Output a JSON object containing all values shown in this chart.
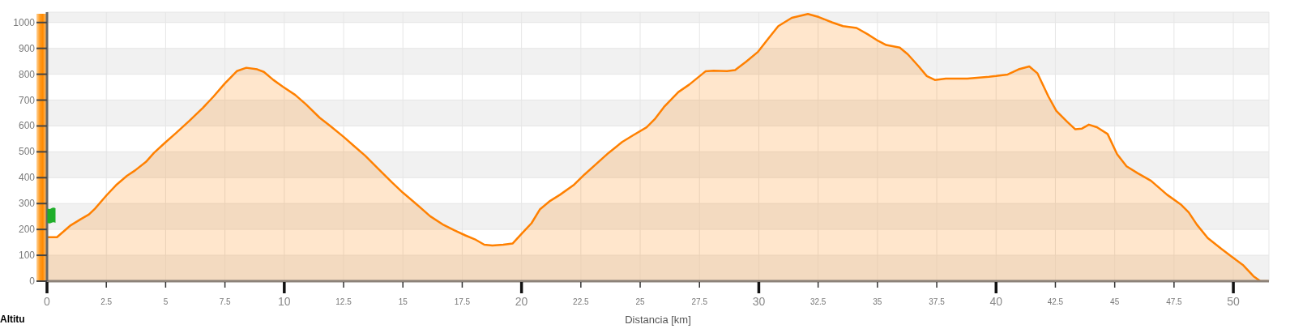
{
  "chart_data": {
    "type": "area",
    "xlabel": "Distancia [km]",
    "ylabel": "Altitu",
    "color": "#ff8000",
    "x": [
      0,
      0.42,
      0.97,
      1.43,
      1.77,
      2.02,
      2.51,
      2.91,
      3.37,
      3.71,
      4.17,
      4.51,
      4.97,
      5.43,
      6.0,
      6.57,
      7.03,
      7.49,
      8.0,
      8.4,
      8.86,
      9.14,
      9.54,
      9.94,
      10.46,
      10.91,
      11.49,
      11.94,
      12.5,
      13.01,
      13.41,
      13.98,
      14.55,
      15.0,
      15.58,
      16.15,
      16.72,
      17.18,
      17.63,
      18.03,
      18.43,
      18.77,
      19.23,
      19.63,
      20.03,
      20.42,
      20.77,
      21.17,
      21.62,
      22.19,
      22.65,
      23.1,
      23.67,
      24.24,
      24.7,
      25.27,
      25.61,
      26.0,
      26.61,
      27.07,
      27.75,
      28.09,
      28.66,
      29.0,
      29.46,
      29.97,
      30.37,
      30.82,
      31.39,
      32.07,
      32.53,
      33.1,
      33.55,
      34.12,
      34.58,
      35.03,
      35.37,
      35.94,
      36.28,
      36.74,
      37.08,
      37.42,
      37.88,
      38.79,
      39.7,
      40.0,
      40.49,
      40.95,
      41.4,
      41.74,
      42.2,
      42.54,
      43.0,
      43.34,
      43.62,
      43.91,
      44.25,
      44.7,
      45.1,
      45.5,
      45.96,
      46.53,
      47.21,
      47.78,
      48.12,
      48.46,
      48.92,
      49.49,
      49.94,
      50.4,
      50.85,
      51.14,
      51.48
    ],
    "values": [
      170,
      170,
      214,
      240,
      258,
      280,
      332,
      371,
      407,
      428,
      461,
      496,
      535,
      572,
      620,
      670,
      715,
      764,
      812,
      825,
      819,
      809,
      778,
      752,
      720,
      684,
      632,
      600,
      558,
      517,
      485,
      433,
      381,
      342,
      297,
      251,
      217,
      196,
      177,
      162,
      141,
      138,
      141,
      146,
      186,
      224,
      277,
      308,
      334,
      371,
      412,
      449,
      496,
      538,
      564,
      595,
      626,
      673,
      731,
      760,
      811,
      814,
      812,
      816,
      848,
      887,
      934,
      986,
      1018,
      1033,
      1021,
      1000,
      986,
      979,
      955,
      929,
      913,
      903,
      877,
      830,
      793,
      778,
      783,
      783,
      790,
      793,
      799,
      819,
      830,
      804,
      715,
      658,
      616,
      587,
      590,
      605,
      595,
      569,
      491,
      444,
      418,
      388,
      334,
      297,
      266,
      219,
      167,
      125,
      94,
      63,
      19,
      0,
      0
    ],
    "xlim": [
      0,
      51.5
    ],
    "xticks": [
      0,
      2.5,
      5,
      7.5,
      10,
      12.5,
      15,
      17.5,
      20,
      22.5,
      25,
      27.5,
      30,
      32.5,
      35,
      37.5,
      40,
      42.5,
      45,
      47.5,
      50
    ],
    "ylim": [
      0,
      1040
    ],
    "yticks": [
      0,
      100,
      200,
      300,
      400,
      500,
      600,
      700,
      800,
      900,
      1000
    ],
    "grid": true
  }
}
